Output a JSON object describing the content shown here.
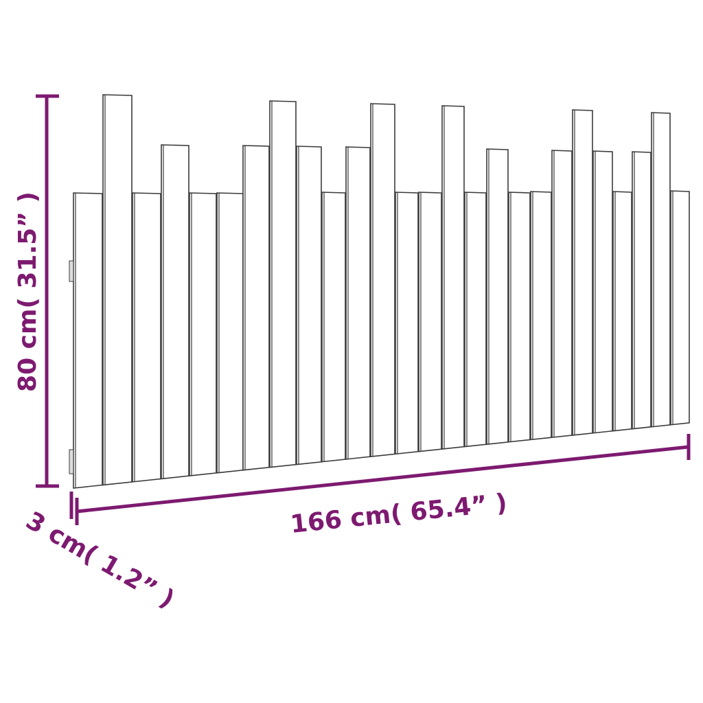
{
  "colors": {
    "dimension": "#7d1a70",
    "outline": "#3a3a3a",
    "panel": "#ffffff"
  },
  "dimensions": {
    "height_label": "80 cm( 31.5” )",
    "width_label": "166 cm( 65.4” )",
    "depth_label": "3 cm( 1.2” )"
  }
}
